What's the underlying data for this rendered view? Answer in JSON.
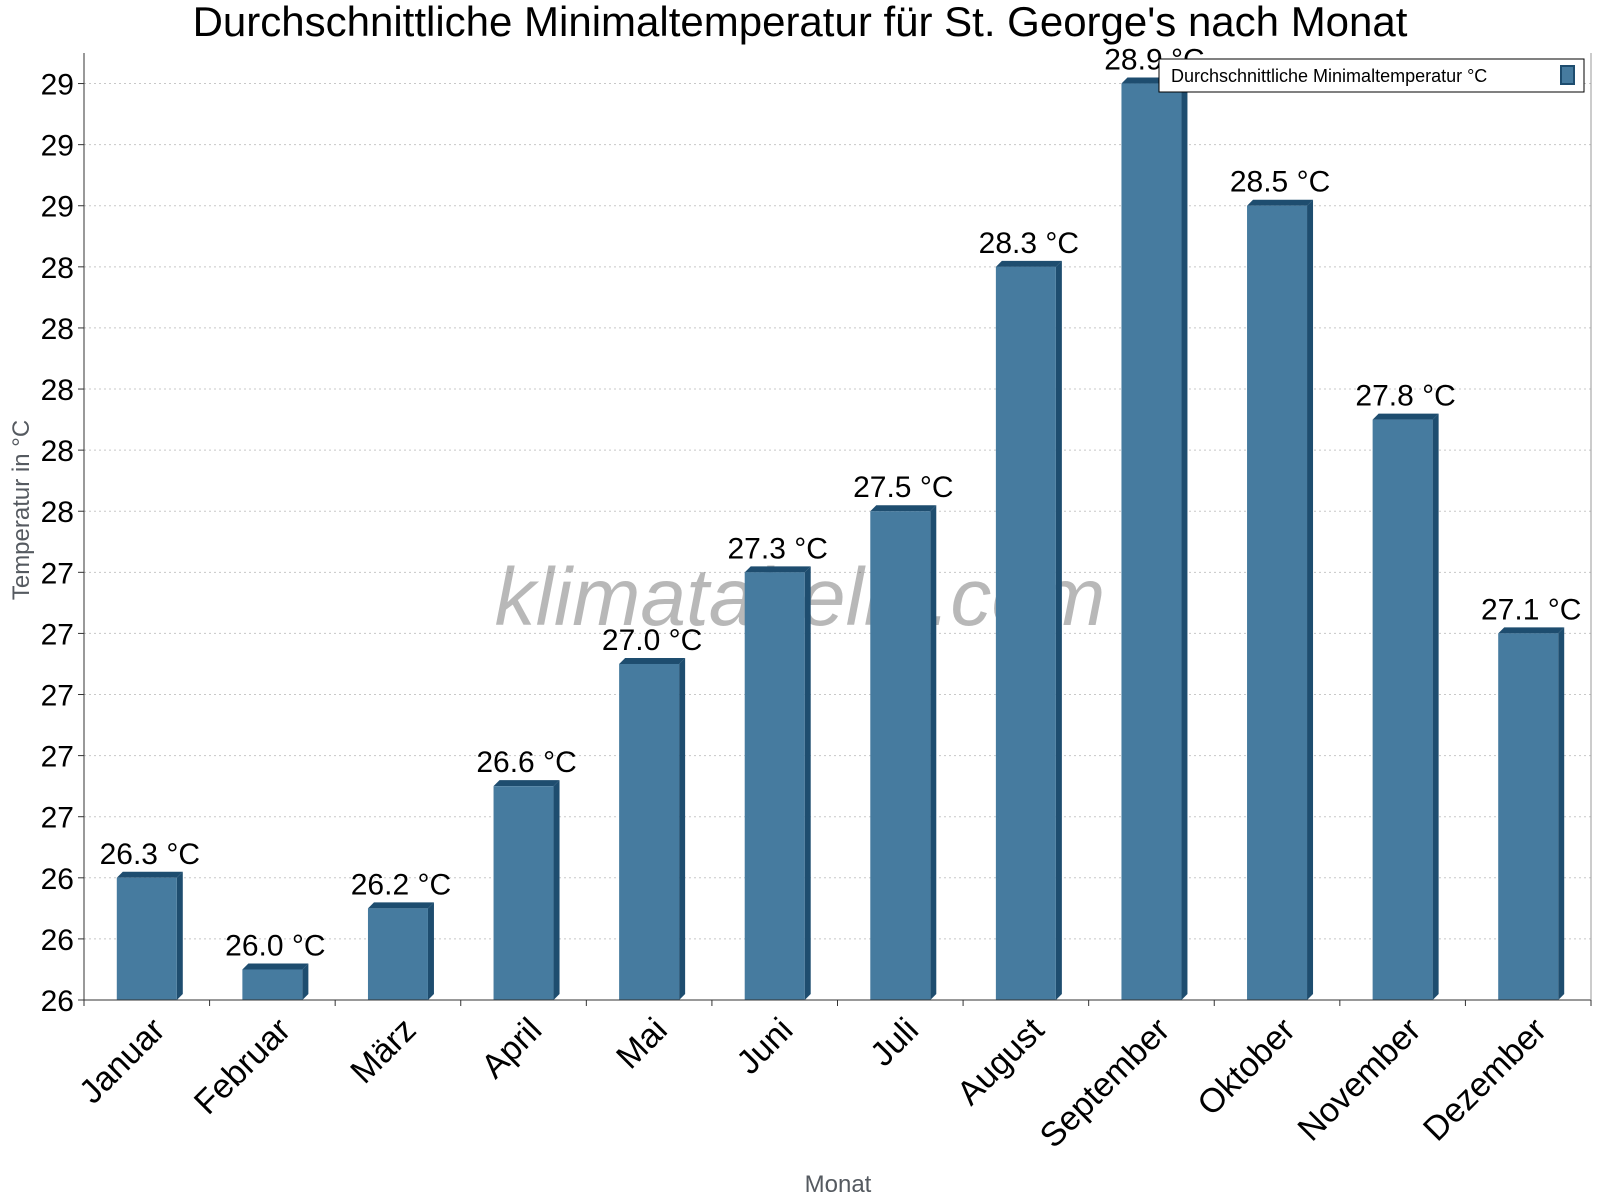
{
  "chart_data": {
    "type": "bar",
    "title": "Durchschnittliche Minimaltemperatur für St. George's nach Monat",
    "xlabel": "Monat",
    "ylabel": "Temperatur in °C",
    "categories": [
      "Januar",
      "Februar",
      "März",
      "April",
      "Mai",
      "Juni",
      "Juli",
      "August",
      "September",
      "Oktober",
      "November",
      "Dezember"
    ],
    "series": [
      {
        "name": "Durchschnittliche Minimaltemperatur °C",
        "values": [
          26.3,
          26.0,
          26.2,
          26.6,
          27.0,
          27.3,
          27.5,
          28.3,
          28.9,
          28.5,
          27.8,
          27.1
        ],
        "labels": [
          "26.3 °C",
          "26.0 °C",
          "26.2 °C",
          "26.6 °C",
          "27.0 °C",
          "27.3 °C",
          "27.5 °C",
          "28.3 °C",
          "28.9 °C",
          "28.5 °C",
          "27.8 °C",
          "27.1 °C"
        ]
      }
    ],
    "ylim": [
      25.9,
      29.0
    ],
    "y_ticks": [
      25.9,
      26.1,
      26.3,
      26.5,
      26.7,
      26.9,
      27.1,
      27.3,
      27.5,
      27.7,
      27.9,
      28.1,
      28.3,
      28.5,
      28.7,
      28.9
    ],
    "y_tick_labels": [
      "26",
      "26",
      "26",
      "27",
      "27",
      "27",
      "27",
      "27",
      "28",
      "28",
      "28",
      "28",
      "28",
      "29",
      "29",
      "29"
    ],
    "grid": true,
    "legend_position": "top-right",
    "colors": {
      "bar_face": "#467b9f",
      "bar_side": "#1e4d6f",
      "bar_top": "#1e4d6f",
      "grid": "#c8c8c8",
      "axis": "#333333"
    }
  },
  "watermark": "klimatabelle.com"
}
